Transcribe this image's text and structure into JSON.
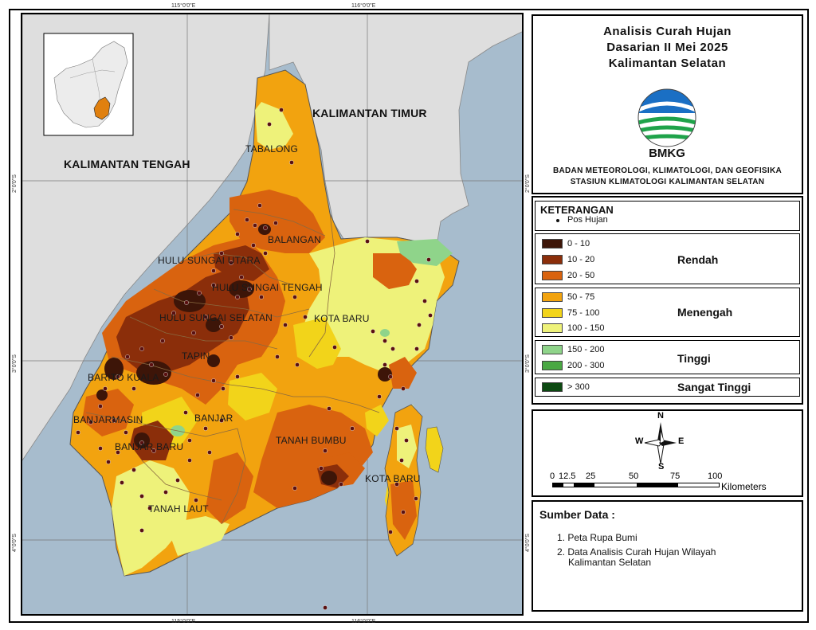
{
  "map": {
    "region_labels": {
      "kalteng": "KALIMANTAN TENGAH",
      "kaltim": "KALIMANTAN TIMUR",
      "tabalong": "TABALONG",
      "balangan": "BALANGAN",
      "hsu": "HULU SUNGAI UTARA",
      "hst": "HULU SUNGAI TENGAH",
      "hss": "HULU SUNGAI SELATAN",
      "kotabaru_n": "KOTA BARU",
      "tapin": "TAPIN",
      "baritokuala": "BARITO KUALA",
      "banjarmasin": "BANJARMASIN",
      "banjar": "BANJAR",
      "banjarbaru": "BANJAR BARU",
      "tanahbumbu": "TANAH BUMBU",
      "kotabaru_s": "KOTA BARU",
      "tanahlaut": "TANAH LAUT"
    },
    "coords": {
      "top_115": "115°0'0\"E",
      "top_116": "116°0'0\"E",
      "bottom_115": "115°0'0\"E",
      "bottom_116": "116°0'0\"E",
      "left_2": "2°0'0\"S",
      "left_3": "3°0'0\"S",
      "left_4": "4°0'0\"S",
      "right_2": "2°0'0\"S",
      "right_3": "3°0'0\"S",
      "right_4": "4°0'0\"S"
    },
    "colors": {
      "sea": "#a7bccd",
      "land_other": "#dedede",
      "c0_10": "#3d1508",
      "c10_20": "#8b2e0a",
      "c20_50": "#d9630f",
      "c50_75": "#f2a30f",
      "c75_100": "#f2d41a",
      "c100_150": "#eef27a",
      "c150_200": "#8fd48a",
      "c200_300": "#4aa843",
      "c300": "#0d4a12",
      "station": "#5a1010"
    }
  },
  "header": {
    "title_1": "Analisis Curah Hujan",
    "title_2": "Dasarian II Mei 2025",
    "title_3": "Kalimantan Selatan",
    "logo_text": "BMKG",
    "org_1": "BADAN METEOROLOGI, KLIMATOLOGI, DAN GEOFISIKA",
    "org_2": "STASIUN KLIMATOLOGI KALIMANTAN SELATAN"
  },
  "legend": {
    "heading": "KETERANGAN",
    "station_label": "Pos Hujan",
    "classes": [
      {
        "label": "0 - 10",
        "color": "#3d1508"
      },
      {
        "label": "10 - 20",
        "color": "#8b2e0a"
      },
      {
        "label": "20 - 50",
        "color": "#d9630f"
      },
      {
        "label": "50 - 75",
        "color": "#f2a30f"
      },
      {
        "label": "75 - 100",
        "color": "#f2d41a"
      },
      {
        "label": "100 - 150",
        "color": "#eef27a"
      },
      {
        "label": "150 - 200",
        "color": "#8fd48a"
      },
      {
        "label": "200 - 300",
        "color": "#4aa843"
      },
      {
        "label": "> 300",
        "color": "#0d4a12"
      }
    ],
    "categories": {
      "low": "Rendah",
      "medium": "Menengah",
      "high": "Tinggi",
      "very_high": "Sangat Tinggi"
    }
  },
  "compass": {
    "n": "N",
    "e": "E",
    "s": "S",
    "w": "W"
  },
  "scale": {
    "ticks": [
      "0",
      "12.5",
      "25",
      "50",
      "75",
      "100"
    ],
    "unit": "Kilometers"
  },
  "source": {
    "heading": "Sumber Data :",
    "item_1": "1. Peta Rupa Bumi",
    "item_2a": "2. Data Analisis Curah Hujan Wilayah",
    "item_2b": "Kalimantan Selatan"
  }
}
